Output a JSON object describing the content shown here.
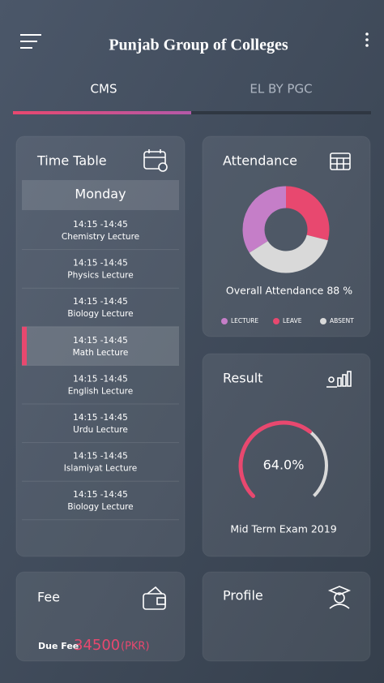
{
  "header": {
    "title": "Punjab Group of Colleges"
  },
  "tabs": [
    "CMS",
    "EL BY PGC"
  ],
  "timetable": {
    "title": "Time Table",
    "day": "Monday",
    "rows": [
      {
        "time": "14:15 -14:45",
        "subject": "Chemistry Lecture"
      },
      {
        "time": "14:15 -14:45",
        "subject": "Physics Lecture"
      },
      {
        "time": "14:15 -14:45",
        "subject": "Biology Lecture"
      },
      {
        "time": "14:15 -14:45",
        "subject": "Math Lecture",
        "selected": true
      },
      {
        "time": "14:15 -14:45",
        "subject": "English Lecture"
      },
      {
        "time": "14:15 -14:45",
        "subject": "Urdu Lecture"
      },
      {
        "time": "14:15 -14:45",
        "subject": "Islamiyat Lecture"
      },
      {
        "time": "14:15 -14:45",
        "subject": "Biology Lecture"
      }
    ]
  },
  "attendance": {
    "title": "Attendance",
    "type": "pie",
    "categories": [
      "LECTURE",
      "LEAVE",
      "ABSENT"
    ],
    "values": [
      34,
      29,
      37
    ],
    "colors": [
      "#c57ec8",
      "#e8486f",
      "#d9d9d9"
    ],
    "summary": "Overall Attendance 88 %"
  },
  "result": {
    "title": "Result",
    "type": "gauge",
    "value": 64,
    "value_label": "64.0%",
    "range": [
      0,
      100
    ],
    "color": "#e8486f",
    "exam": "Mid Term Exam 2019"
  },
  "fee": {
    "title": "Fee",
    "label": "Due Fee",
    "amount": 34500,
    "currency": "(PKR)"
  },
  "profile": {
    "title": "Profile"
  }
}
